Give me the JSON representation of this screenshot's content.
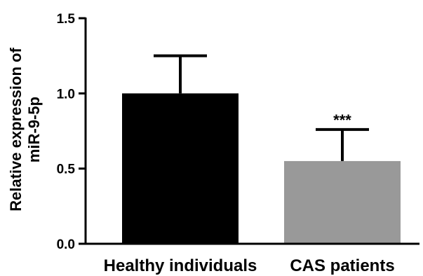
{
  "chart_data": {
    "type": "bar",
    "title": "",
    "xlabel": "",
    "ylabel_lines": [
      "Relative expression of",
      "miR-9-5p"
    ],
    "ylim": [
      0,
      1.5
    ],
    "yticks": [
      0.0,
      0.5,
      1.0,
      1.5
    ],
    "ytick_labels": [
      "0.0",
      "0.5",
      "1.0",
      "1.5"
    ],
    "categories": [
      "Healthy individuals",
      "CAS patients"
    ],
    "values": [
      1.0,
      0.55
    ],
    "errors": [
      0.25,
      0.21
    ],
    "annotations": [
      "",
      "***"
    ],
    "colors": [
      "#000000",
      "#999999"
    ],
    "grid": false,
    "legend": "none"
  }
}
